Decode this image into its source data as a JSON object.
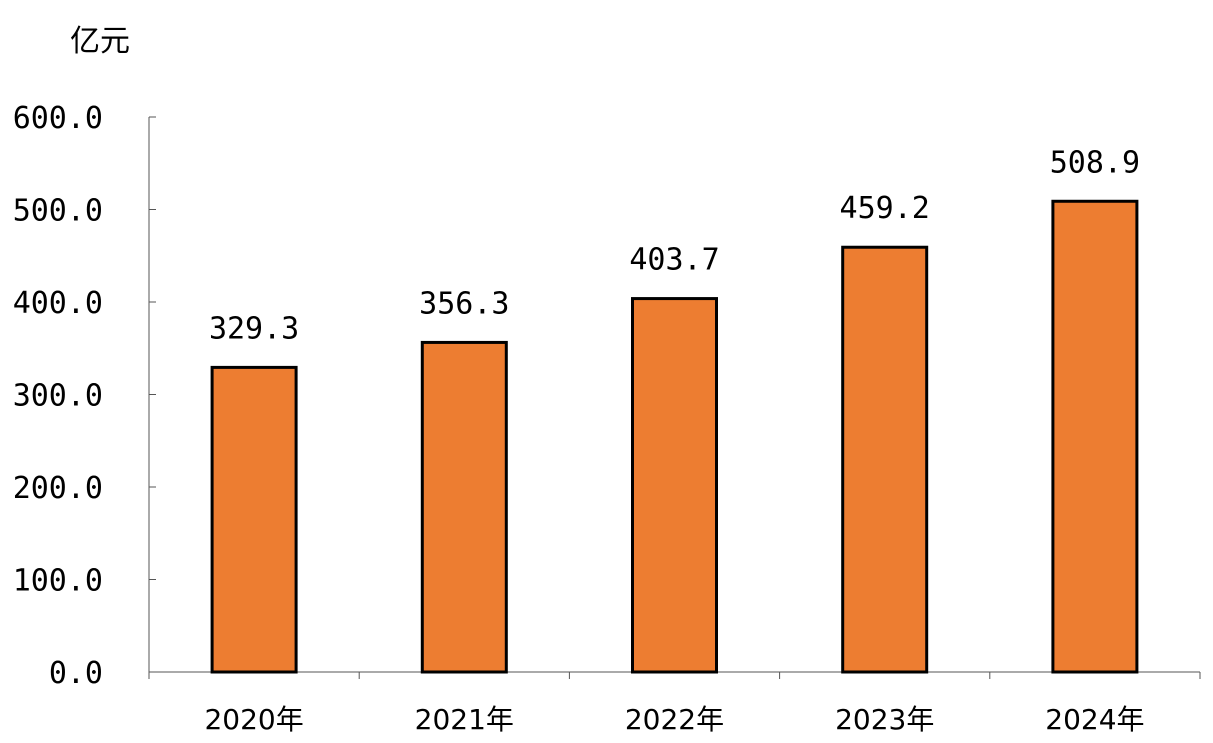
{
  "chart_data": {
    "type": "bar",
    "title": "",
    "unit": "亿元",
    "xlabel": "",
    "ylabel": "",
    "categories": [
      "2020年",
      "2021年",
      "2022年",
      "2023年",
      "2024年"
    ],
    "values": [
      329.3,
      356.3,
      403.7,
      459.2,
      508.9
    ],
    "data_labels": [
      "329.3",
      "356.3",
      "403.7",
      "459.2",
      "508.9"
    ],
    "ylim": [
      0,
      600
    ],
    "yticks": [
      0,
      100,
      200,
      300,
      400,
      500,
      600
    ],
    "ytick_labels": [
      "0.0",
      "100.0",
      "200.0",
      "300.0",
      "400.0",
      "500.0",
      "600.0"
    ],
    "grid": false,
    "legend": "none",
    "bar_color": "#ED7D31",
    "bar_edge_color": "#000000"
  }
}
